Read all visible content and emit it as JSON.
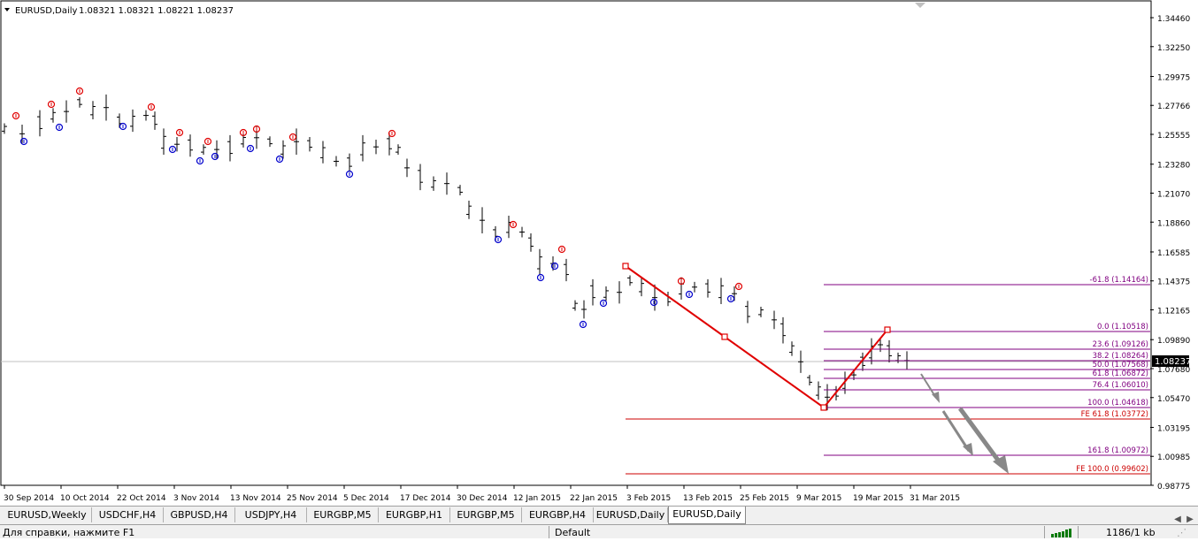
{
  "chart_header": {
    "symbol": "EURUSD,Daily",
    "ohlc": "1.08321 1.08321 1.08221 1.08237"
  },
  "price_axis": {
    "labels": [
      "1.34460",
      "1.32250",
      "1.29975",
      "1.27766",
      "1.25555",
      "1.23280",
      "1.21070",
      "1.18860",
      "1.16585",
      "1.14375",
      "1.12165",
      "1.09890",
      "1.07680",
      "1.05470",
      "1.03195",
      "1.00985",
      "0.98775"
    ],
    "current_price": "1.08237"
  },
  "time_axis": {
    "labels": [
      "30 Sep 2014",
      "10 Oct 2014",
      "22 Oct 2014",
      "3 Nov 2014",
      "13 Nov 2014",
      "25 Nov 2014",
      "5 Dec 2014",
      "17 Dec 2014",
      "30 Dec 2014",
      "12 Jan 2015",
      "22 Jan 2015",
      "3 Feb 2015",
      "13 Feb 2015",
      "25 Feb 2015",
      "9 Mar 2015",
      "19 Mar 2015",
      "31 Mar 2015"
    ]
  },
  "fibo_levels": [
    {
      "label": "-61.8 (1.14164)",
      "color": "#800080"
    },
    {
      "label": "0.0 (1.10518)",
      "color": "#800080"
    },
    {
      "label": "23.6 (1.09126)",
      "color": "#800080"
    },
    {
      "label": "38.2 (1.08264)",
      "color": "#800080"
    },
    {
      "label": "50.0 (1.07568)",
      "color": "#800080"
    },
    {
      "label": "61.8 (1.06872)",
      "color": "#800080"
    },
    {
      "label": "76.4 (1.06010)",
      "color": "#800080"
    },
    {
      "label": "100.0 (1.04618)",
      "color": "#800080"
    },
    {
      "label": "FE 61.8 (1.03772)",
      "color": "#cc0000"
    },
    {
      "label": "161.8 (1.00972)",
      "color": "#800080"
    },
    {
      "label": "FE 100.0 (0.99602)",
      "color": "#cc0000"
    }
  ],
  "tabs": [
    {
      "label": "EURUSD,Weekly",
      "active": false
    },
    {
      "label": "USDCHF,H4",
      "active": false
    },
    {
      "label": "GBPUSD,H4",
      "active": false
    },
    {
      "label": "USDJPY,H4",
      "active": false
    },
    {
      "label": "EURGBP,M5",
      "active": false
    },
    {
      "label": "EURGBP,H1",
      "active": false
    },
    {
      "label": "EURGBP,M5",
      "active": false
    },
    {
      "label": "EURGBP,H4",
      "active": false
    },
    {
      "label": "EURUSD,Daily",
      "active": false
    },
    {
      "label": "EURUSD,Daily",
      "active": true
    }
  ],
  "status_bar": {
    "help": "Для справки, нажмите F1",
    "profile": "Default",
    "traffic": "1186/1 kb"
  },
  "colors": {
    "bars": "#000000",
    "fractal_up": "#e00000",
    "fractal_down": "#0000cc",
    "zigzag": "#e00000",
    "fibo": "#800080",
    "projection": "#888888"
  },
  "icons": {
    "scroll_left": "left-arrow-icon",
    "scroll_right": "right-arrow-icon",
    "connection": "connection-bars-icon"
  }
}
